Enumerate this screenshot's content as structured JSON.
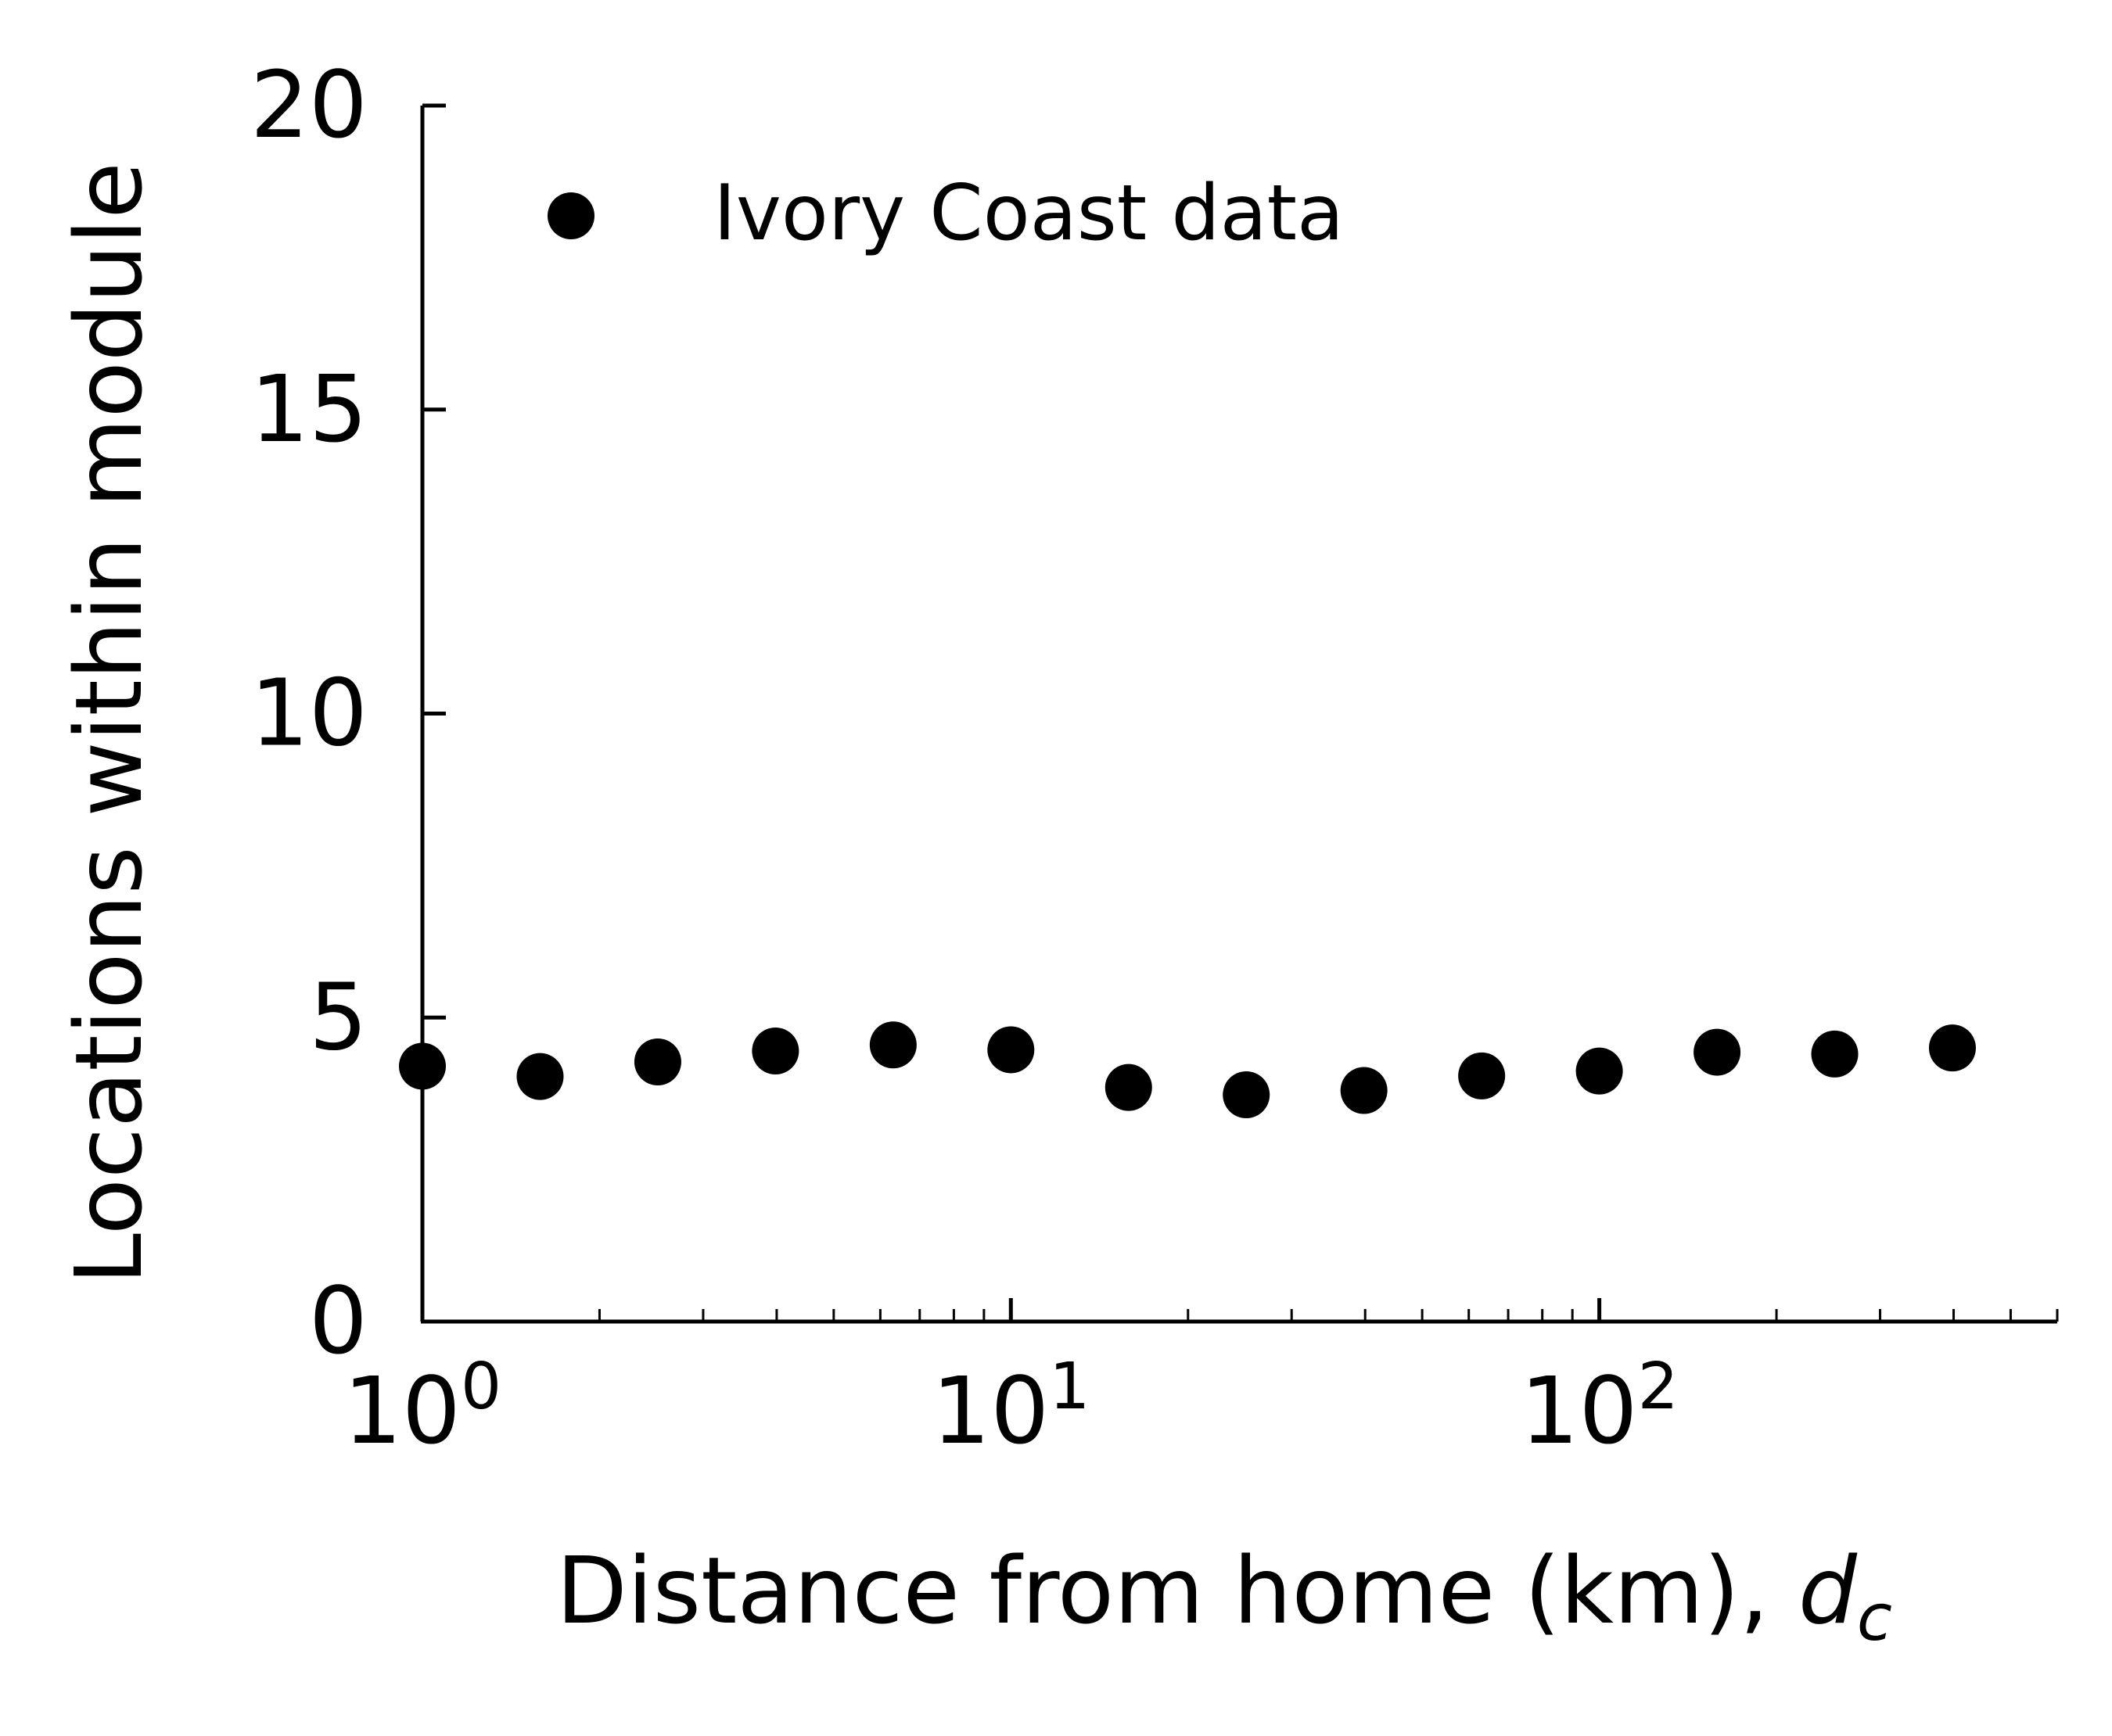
{
  "chart_data": {
    "type": "scatter",
    "xscale": "log",
    "xlim": [
      1,
      600
    ],
    "ylim": [
      0,
      20
    ],
    "grid": false,
    "xlabel": "Distance from home (km), ",
    "xlabel_symbol": "d",
    "xlabel_subscript": "c",
    "ylabel": "Locations within module",
    "yticks": [
      "0",
      "5",
      "10",
      "15",
      "20"
    ],
    "xticks": [
      {
        "value": 1,
        "base": "10",
        "exp": "0"
      },
      {
        "value": 10,
        "base": "10",
        "exp": "1"
      },
      {
        "value": 100,
        "base": "10",
        "exp": "2"
      }
    ],
    "legend": {
      "position": "top-left",
      "entries": [
        "Ivory Coast data"
      ]
    },
    "series": [
      {
        "name": "Ivory Coast data",
        "color": "#000000",
        "marker": "circle",
        "x": [
          1.0,
          1.585,
          2.512,
          3.981,
          6.31,
          10.0,
          15.85,
          25.12,
          39.81,
          63.1,
          100.0,
          158.5,
          251.2,
          398.1
        ],
        "y": [
          4.2,
          4.03,
          4.27,
          4.45,
          4.55,
          4.47,
          3.85,
          3.73,
          3.8,
          4.04,
          4.12,
          4.43,
          4.4,
          4.5
        ]
      }
    ]
  }
}
